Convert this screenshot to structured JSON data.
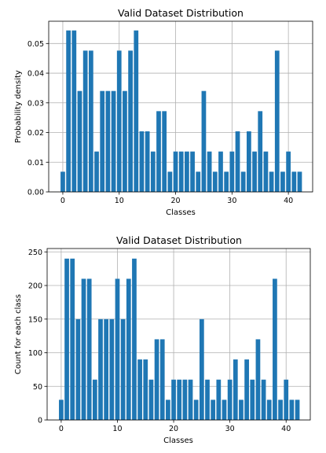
{
  "chart_data": [
    {
      "type": "bar",
      "title": "Valid Dataset Distribution",
      "xlabel": "Classes",
      "ylabel": "Probability density",
      "xlim": [
        -2.5,
        44.3
      ],
      "ylim": [
        0,
        0.0575
      ],
      "grid": true,
      "color": "#1f77b4",
      "xticks": [
        0,
        10,
        20,
        30,
        40
      ],
      "yticks": [
        0.0,
        0.01,
        0.02,
        0.03,
        0.04,
        0.05
      ],
      "ytick_labels": [
        "0.00",
        "0.01",
        "0.02",
        "0.03",
        "0.04",
        "0.05"
      ],
      "categories": [
        0,
        1,
        2,
        3,
        4,
        5,
        6,
        7,
        8,
        9,
        10,
        11,
        12,
        13,
        14,
        15,
        16,
        17,
        18,
        19,
        20,
        21,
        22,
        23,
        24,
        25,
        26,
        27,
        28,
        29,
        30,
        31,
        32,
        33,
        34,
        35,
        36,
        37,
        38,
        39,
        40,
        41,
        42
      ],
      "values": [
        0.0068,
        0.0544,
        0.0544,
        0.034,
        0.0476,
        0.0476,
        0.0136,
        0.034,
        0.034,
        0.034,
        0.0476,
        0.034,
        0.0476,
        0.0544,
        0.0204,
        0.0204,
        0.0136,
        0.0272,
        0.0272,
        0.0068,
        0.0136,
        0.0136,
        0.0136,
        0.0136,
        0.0068,
        0.034,
        0.0136,
        0.0068,
        0.0136,
        0.0068,
        0.0136,
        0.0204,
        0.0068,
        0.0204,
        0.0136,
        0.0272,
        0.0136,
        0.0068,
        0.0476,
        0.0068,
        0.0136,
        0.0068,
        0.0068
      ]
    },
    {
      "type": "bar",
      "title": "Valid Dataset Distribution",
      "xlabel": "Classes",
      "ylabel": "Count for each class",
      "xlim": [
        -2.5,
        44.3
      ],
      "ylim": [
        0,
        255
      ],
      "grid": true,
      "color": "#1f77b4",
      "xticks": [
        0,
        10,
        20,
        30,
        40
      ],
      "yticks": [
        0,
        50,
        100,
        150,
        200,
        250
      ],
      "ytick_labels": [
        "0",
        "50",
        "100",
        "150",
        "200",
        "250"
      ],
      "categories": [
        0,
        1,
        2,
        3,
        4,
        5,
        6,
        7,
        8,
        9,
        10,
        11,
        12,
        13,
        14,
        15,
        16,
        17,
        18,
        19,
        20,
        21,
        22,
        23,
        24,
        25,
        26,
        27,
        28,
        29,
        30,
        31,
        32,
        33,
        34,
        35,
        36,
        37,
        38,
        39,
        40,
        41,
        42
      ],
      "values": [
        30,
        240,
        240,
        150,
        210,
        210,
        60,
        150,
        150,
        150,
        210,
        150,
        210,
        240,
        90,
        90,
        60,
        120,
        120,
        30,
        60,
        60,
        60,
        60,
        30,
        150,
        60,
        30,
        60,
        30,
        60,
        90,
        30,
        90,
        60,
        120,
        60,
        30,
        210,
        30,
        60,
        30,
        30
      ]
    }
  ]
}
